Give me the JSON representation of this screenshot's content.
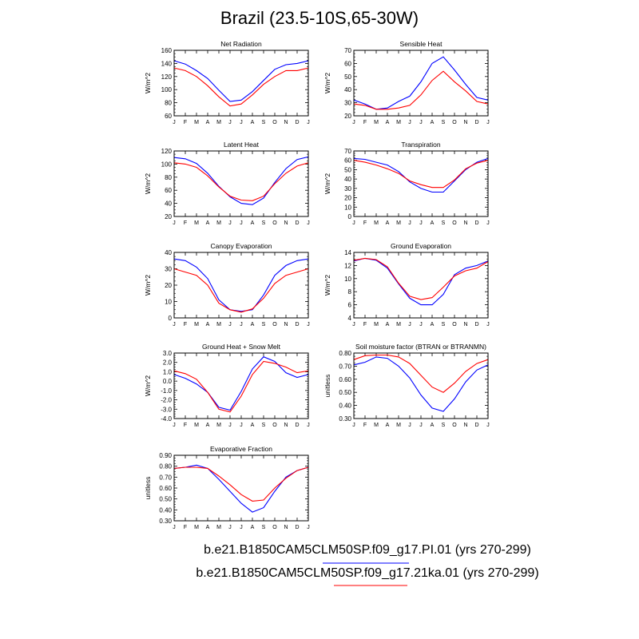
{
  "figure_title": "Brazil (23.5-10S,65-30W)",
  "legend": [
    {
      "label": "b.e21.B1850CAM5CLM50SP.f09_g17.PI.01 (yrs 270-299)",
      "color": "#0000ff"
    },
    {
      "label": "b.e21.B1850CAM5CLM50SP.f09_g17.21ka.01 (yrs 270-299)",
      "color": "#ff0000"
    }
  ],
  "chart_data": [
    {
      "type": "line",
      "title": "Net Radiation",
      "ylabel": "W/m^2",
      "categories": [
        "J",
        "F",
        "M",
        "A",
        "M",
        "J",
        "J",
        "A",
        "S",
        "O",
        "N",
        "D",
        "J"
      ],
      "ylim": [
        60,
        160
      ],
      "yticks": [
        60,
        80,
        100,
        120,
        140,
        160
      ],
      "ytick_labels": [
        "60",
        "80",
        "100",
        "120",
        "140",
        "160"
      ],
      "series": [
        {
          "name": "PI",
          "color": "#0000ff",
          "values": [
            144,
            139,
            129,
            117,
            99,
            82,
            84,
            97,
            114,
            131,
            138,
            140,
            144
          ]
        },
        {
          "name": "21ka",
          "color": "#ff0000",
          "values": [
            133,
            129,
            120,
            106,
            89,
            75,
            78,
            92,
            108,
            120,
            129,
            129,
            133
          ]
        }
      ]
    },
    {
      "type": "line",
      "title": "Sensible Heat",
      "ylabel": "W/m^2",
      "categories": [
        "J",
        "F",
        "M",
        "A",
        "M",
        "J",
        "J",
        "A",
        "S",
        "O",
        "N",
        "D",
        "J"
      ],
      "ylim": [
        20,
        70
      ],
      "yticks": [
        20,
        30,
        40,
        50,
        60,
        70
      ],
      "ytick_labels": [
        "20",
        "30",
        "40",
        "50",
        "60",
        "70"
      ],
      "series": [
        {
          "name": "PI",
          "color": "#0000ff",
          "values": [
            32,
            29,
            25,
            26,
            31,
            35,
            46,
            60,
            65,
            55,
            44,
            34,
            32
          ]
        },
        {
          "name": "21ka",
          "color": "#ff0000",
          "values": [
            29,
            28,
            25,
            25,
            26,
            28,
            36,
            47,
            54,
            46,
            39,
            31,
            29
          ]
        }
      ]
    },
    {
      "type": "line",
      "title": "Latent Heat",
      "ylabel": "W/m^2",
      "categories": [
        "J",
        "F",
        "M",
        "A",
        "M",
        "J",
        "J",
        "A",
        "S",
        "O",
        "N",
        "D",
        "J"
      ],
      "ylim": [
        20,
        120
      ],
      "yticks": [
        20,
        40,
        60,
        80,
        100,
        120
      ],
      "ytick_labels": [
        "20",
        "40",
        "60",
        "80",
        "100",
        "120"
      ],
      "series": [
        {
          "name": "PI",
          "color": "#0000ff",
          "values": [
            110,
            108,
            101,
            86,
            66,
            50,
            40,
            38,
            48,
            72,
            93,
            107,
            111
          ]
        },
        {
          "name": "21ka",
          "color": "#ff0000",
          "values": [
            102,
            100,
            95,
            82,
            65,
            51,
            45,
            44,
            51,
            70,
            86,
            97,
            102
          ]
        }
      ]
    },
    {
      "type": "line",
      "title": "Transpiration",
      "ylabel": "W/m^2",
      "categories": [
        "J",
        "F",
        "M",
        "A",
        "M",
        "J",
        "J",
        "A",
        "S",
        "O",
        "N",
        "D",
        "J"
      ],
      "ylim": [
        0,
        70
      ],
      "yticks": [
        0,
        10,
        20,
        30,
        40,
        50,
        60,
        70
      ],
      "ytick_labels": [
        "0",
        "10",
        "20",
        "30",
        "40",
        "50",
        "60",
        "70"
      ],
      "series": [
        {
          "name": "PI",
          "color": "#0000ff",
          "values": [
            62,
            61,
            58,
            55,
            48,
            37,
            30,
            26,
            26,
            38,
            50,
            58,
            62
          ]
        },
        {
          "name": "21ka",
          "color": "#ff0000",
          "values": [
            60,
            58,
            55,
            51,
            46,
            38,
            34,
            31,
            31,
            39,
            51,
            57,
            60
          ]
        }
      ]
    },
    {
      "type": "line",
      "title": "Canopy Evaporation",
      "ylabel": "W/m^2",
      "categories": [
        "J",
        "F",
        "M",
        "A",
        "M",
        "J",
        "J",
        "A",
        "S",
        "O",
        "N",
        "D",
        "J"
      ],
      "ylim": [
        0,
        40
      ],
      "yticks": [
        0,
        10,
        20,
        30,
        40
      ],
      "ytick_labels": [
        "0",
        "10",
        "20",
        "30",
        "40"
      ],
      "series": [
        {
          "name": "PI",
          "color": "#0000ff",
          "values": [
            36,
            35,
            31,
            24,
            11,
            5,
            4,
            5,
            14,
            26,
            32,
            35,
            36
          ]
        },
        {
          "name": "21ka",
          "color": "#ff0000",
          "values": [
            30,
            28,
            26,
            20,
            9,
            5,
            3.5,
            5.5,
            12,
            21,
            26,
            28,
            30
          ]
        }
      ]
    },
    {
      "type": "line",
      "title": "Ground Evaporation",
      "ylabel": "W/m^2",
      "categories": [
        "J",
        "F",
        "M",
        "A",
        "M",
        "J",
        "J",
        "A",
        "S",
        "O",
        "N",
        "D",
        "J"
      ],
      "ylim": [
        4,
        14
      ],
      "yticks": [
        4,
        6,
        8,
        10,
        12,
        14
      ],
      "ytick_labels": [
        "4",
        "6",
        "8",
        "10",
        "12",
        "14"
      ],
      "series": [
        {
          "name": "PI",
          "color": "#0000ff",
          "values": [
            12.7,
            13.1,
            12.8,
            11.6,
            9.2,
            7.0,
            6.0,
            6.0,
            7.6,
            10.6,
            11.6,
            12.0,
            12.7
          ]
        },
        {
          "name": "21ka",
          "color": "#ff0000",
          "values": [
            12.8,
            13.1,
            12.9,
            11.8,
            9.3,
            7.3,
            6.8,
            7.1,
            8.7,
            10.4,
            11.2,
            11.6,
            12.6
          ]
        }
      ]
    },
    {
      "type": "line",
      "title": "Ground Heat + Snow Melt",
      "ylabel": "W/m^2",
      "categories": [
        "J",
        "F",
        "M",
        "A",
        "M",
        "J",
        "J",
        "A",
        "S",
        "O",
        "N",
        "D",
        "J"
      ],
      "ylim": [
        -4,
        3
      ],
      "yticks": [
        -4,
        -3,
        -2,
        -1,
        0,
        1,
        2,
        3
      ],
      "ytick_labels": [
        "-4.0",
        "-3.0",
        "-2.0",
        "-1.0",
        "0.0",
        "1.0",
        "2.0",
        "3.0"
      ],
      "series": [
        {
          "name": "PI",
          "color": "#0000ff",
          "values": [
            0.7,
            0.3,
            -0.3,
            -1.2,
            -2.8,
            -3.1,
            -1.1,
            1.3,
            2.6,
            2.1,
            0.9,
            0.4,
            0.7
          ]
        },
        {
          "name": "21ka",
          "color": "#ff0000",
          "values": [
            1.1,
            0.8,
            0.2,
            -1.2,
            -3.0,
            -3.3,
            -1.6,
            0.7,
            2.1,
            1.9,
            1.5,
            0.9,
            1.1
          ]
        }
      ]
    },
    {
      "type": "line",
      "title": "Soil moisture factor (BTRAN or BTRANMN)",
      "ylabel": "unitless",
      "categories": [
        "J",
        "F",
        "M",
        "A",
        "M",
        "J",
        "J",
        "A",
        "S",
        "O",
        "N",
        "D",
        "J"
      ],
      "ylim": [
        0.3,
        0.8
      ],
      "yticks": [
        0.3,
        0.4,
        0.5,
        0.6,
        0.7,
        0.8
      ],
      "ytick_labels": [
        "0.30",
        "0.40",
        "0.50",
        "0.60",
        "0.70",
        "0.80"
      ],
      "series": [
        {
          "name": "PI",
          "color": "#0000ff",
          "values": [
            0.71,
            0.73,
            0.77,
            0.76,
            0.7,
            0.61,
            0.48,
            0.38,
            0.355,
            0.45,
            0.58,
            0.67,
            0.71
          ]
        },
        {
          "name": "21ka",
          "color": "#ff0000",
          "values": [
            0.75,
            0.78,
            0.785,
            0.785,
            0.77,
            0.72,
            0.63,
            0.54,
            0.5,
            0.57,
            0.66,
            0.72,
            0.75
          ]
        }
      ]
    },
    {
      "type": "line",
      "title": "Evaporative Fraction",
      "ylabel": "unitless",
      "categories": [
        "J",
        "F",
        "M",
        "A",
        "M",
        "J",
        "J",
        "A",
        "S",
        "O",
        "N",
        "D",
        "J"
      ],
      "ylim": [
        0.3,
        0.9
      ],
      "yticks": [
        0.3,
        0.4,
        0.5,
        0.6,
        0.7,
        0.8,
        0.9
      ],
      "ytick_labels": [
        "0.30",
        "0.40",
        "0.50",
        "0.60",
        "0.70",
        "0.80",
        "0.90"
      ],
      "series": [
        {
          "name": "PI",
          "color": "#0000ff",
          "values": [
            0.78,
            0.79,
            0.81,
            0.78,
            0.68,
            0.57,
            0.46,
            0.38,
            0.42,
            0.57,
            0.7,
            0.76,
            0.79
          ]
        },
        {
          "name": "21ka",
          "color": "#ff0000",
          "values": [
            0.78,
            0.79,
            0.79,
            0.78,
            0.71,
            0.63,
            0.54,
            0.48,
            0.49,
            0.6,
            0.69,
            0.76,
            0.79
          ]
        }
      ]
    }
  ]
}
